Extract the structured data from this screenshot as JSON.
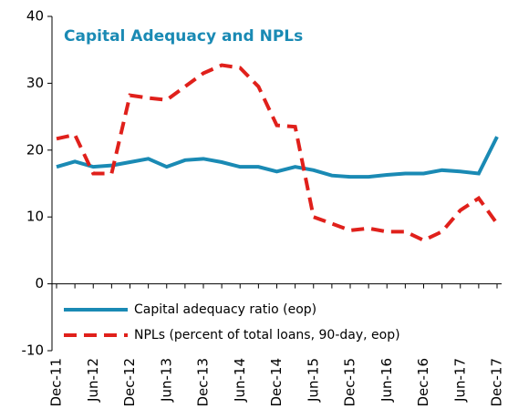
{
  "chart_data": {
    "type": "line",
    "title": "Capital  Adequacy and NPLs",
    "categories": [
      "Dec-11",
      null,
      "Jun-12",
      null,
      "Dec-12",
      null,
      "Jun-13",
      null,
      "Dec-13",
      null,
      "Jun-14",
      null,
      "Dec-14",
      null,
      "Jun-15",
      null,
      "Dec-15",
      null,
      "Jun-16",
      null,
      "Dec-16",
      null,
      "Jun-17",
      null,
      "Dec-17"
    ],
    "series": [
      {
        "name": "Capital adequacy ratio (eop)",
        "color": "#1a8ab4",
        "dash": false,
        "values": [
          17.5,
          18.3,
          17.5,
          17.7,
          18.2,
          18.7,
          17.5,
          18.5,
          18.7,
          18.2,
          17.5,
          17.5,
          16.8,
          17.5,
          17.0,
          16.2,
          16.0,
          16.0,
          16.3,
          16.5,
          16.5,
          17.0,
          16.8,
          16.5,
          22.0
        ]
      },
      {
        "name": "NPLs (percent of total loans, 90-day, eop)",
        "color": "#e0201b",
        "dash": true,
        "values": [
          21.7,
          22.3,
          16.5,
          16.5,
          28.2,
          27.8,
          27.5,
          29.5,
          31.5,
          32.7,
          32.3,
          29.5,
          23.7,
          23.5,
          10.0,
          9.0,
          8.0,
          8.3,
          7.8,
          7.8,
          6.5,
          7.8,
          11.0,
          12.8,
          9.0
        ]
      }
    ],
    "ylim": [
      -10,
      40
    ],
    "yticks": [
      -10,
      0,
      10,
      20,
      30,
      40
    ],
    "grid": false
  }
}
